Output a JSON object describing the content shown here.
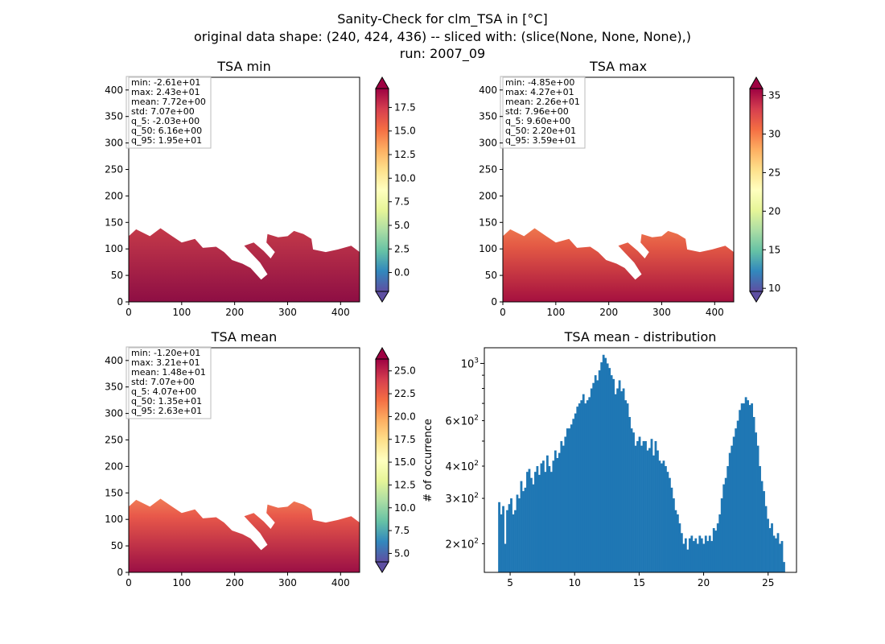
{
  "figure": {
    "title_lines": [
      "Sanity-Check for clm_TSA in [°C]",
      "original data shape: (240, 424, 436) -- sliced with: (slice(None, None, None),)",
      "run: 2007_09"
    ]
  },
  "chart_data": [
    {
      "type": "heatmap",
      "title": "TSA min",
      "colormap": "Spectral_r",
      "xlim": [
        0,
        436
      ],
      "ylim": [
        0,
        424
      ],
      "xticks": [
        0,
        100,
        200,
        300,
        400
      ],
      "yticks": [
        0,
        50,
        100,
        150,
        200,
        250,
        300,
        350,
        400
      ],
      "colorbar": {
        "range": [
          -2.0,
          19.5
        ],
        "ticks": [
          0.0,
          2.5,
          5.0,
          7.5,
          10.0,
          12.5,
          15.0,
          17.5
        ],
        "tick_labels": [
          "0.0",
          "2.5",
          "5.0",
          "7.5",
          "10.0",
          "12.5",
          "15.0",
          "17.5"
        ],
        "extend": "both"
      },
      "stats": [
        "min: -2.61e+01",
        "max: 2.43e+01",
        "mean: 7.72e+00",
        "std: 7.07e+00",
        "q_5: -2.03e+00",
        "q_50: 6.16e+00",
        "q_95: 1.95e+01"
      ],
      "stats_box_position": "top-left"
    },
    {
      "type": "heatmap",
      "title": "TSA max",
      "colormap": "Spectral_r",
      "xlim": [
        0,
        436
      ],
      "ylim": [
        0,
        424
      ],
      "xticks": [
        0,
        100,
        200,
        300,
        400
      ],
      "yticks": [
        0,
        50,
        100,
        150,
        200,
        250,
        300,
        350,
        400
      ],
      "colorbar": {
        "range": [
          9.6,
          35.9
        ],
        "ticks": [
          10,
          15,
          20,
          25,
          30,
          35
        ],
        "tick_labels": [
          "10",
          "15",
          "20",
          "25",
          "30",
          "35"
        ],
        "extend": "both"
      },
      "stats": [
        "min: -4.85e+00",
        "max: 4.27e+01",
        "mean: 2.26e+01",
        "std: 7.96e+00",
        "q_5: 9.60e+00",
        "q_50: 2.20e+01",
        "q_95: 3.59e+01"
      ],
      "stats_box_position": "top-left"
    },
    {
      "type": "heatmap",
      "title": "TSA mean",
      "colormap": "Spectral_r",
      "xlim": [
        0,
        436
      ],
      "ylim": [
        0,
        424
      ],
      "xticks": [
        0,
        100,
        200,
        300,
        400
      ],
      "yticks": [
        0,
        50,
        100,
        150,
        200,
        250,
        300,
        350,
        400
      ],
      "colorbar": {
        "range": [
          4.07,
          26.3
        ],
        "ticks": [
          5.0,
          7.5,
          10.0,
          12.5,
          15.0,
          17.5,
          20.0,
          22.5,
          25.0
        ],
        "tick_labels": [
          "5.0",
          "7.5",
          "10.0",
          "12.5",
          "15.0",
          "17.5",
          "20.0",
          "22.5",
          "25.0"
        ],
        "extend": "both"
      },
      "stats": [
        "min: -1.20e+01",
        "max: 3.21e+01",
        "mean: 1.48e+01",
        "std: 7.07e+00",
        "q_5: 4.07e+00",
        "q_50: 1.35e+01",
        "q_95: 2.63e+01"
      ],
      "stats_box_position": "top-left"
    },
    {
      "type": "bar",
      "title": "TSA mean - distribution",
      "xlabel": "",
      "ylabel": "# of occurrence",
      "yscale": "log",
      "color": "#1f77b4",
      "xlim": [
        3.0,
        27.2
      ],
      "ylim": [
        155,
        1150
      ],
      "xticks": [
        5,
        10,
        15,
        20,
        25
      ],
      "xtick_labels": [
        "5",
        "10",
        "15",
        "20",
        "25"
      ],
      "yticks_major": [
        1000
      ],
      "yticks_major_labels": [
        "10^3"
      ],
      "yticks_minor_labeled": [
        200,
        300,
        400,
        600
      ],
      "yticks_minor_labels": [
        "2×10^2",
        "3×10^2",
        "4×10^2",
        "6×10^2"
      ],
      "yticks_minor_unlabeled": [
        500,
        700,
        800,
        900
      ],
      "x_start": 4.07,
      "x_end": 26.3,
      "counts": [
        290,
        260,
        280,
        200,
        270,
        285,
        300,
        260,
        270,
        310,
        300,
        350,
        320,
        330,
        380,
        390,
        360,
        340,
        380,
        400,
        370,
        410,
        420,
        380,
        440,
        400,
        380,
        420,
        460,
        430,
        450,
        500,
        480,
        520,
        560,
        560,
        580,
        610,
        640,
        680,
        700,
        720,
        760,
        700,
        720,
        740,
        800,
        840,
        900,
        860,
        940,
        1010,
        1080,
        1050,
        1000,
        960,
        900,
        870,
        760,
        800,
        860,
        780,
        800,
        720,
        700,
        620,
        560,
        540,
        480,
        500,
        520,
        480,
        500,
        500,
        460,
        470,
        510,
        440,
        500,
        460,
        420,
        410,
        420,
        400,
        380,
        360,
        330,
        300,
        270,
        260,
        240,
        220,
        200,
        210,
        190,
        210,
        215,
        205,
        210,
        200,
        215,
        210,
        200,
        215,
        205,
        215,
        205,
        230,
        225,
        240,
        260,
        300,
        340,
        360,
        400,
        450,
        480,
        520,
        560,
        600,
        660,
        700,
        700,
        740,
        720,
        690,
        700,
        620,
        540,
        480,
        400,
        350,
        320,
        280,
        250,
        230,
        240,
        215,
        210,
        220,
        200,
        205,
        170
      ]
    }
  ]
}
